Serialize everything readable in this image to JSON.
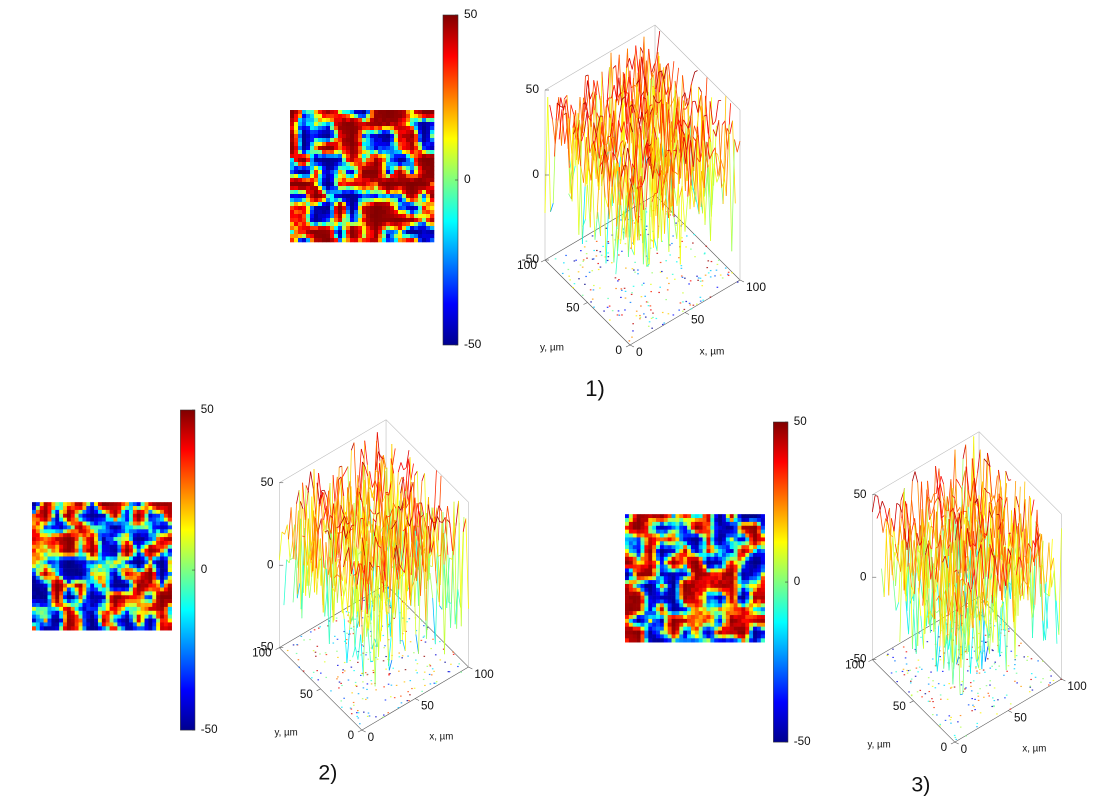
{
  "panels": [
    {
      "label": "1)",
      "colorbar_lim": [
        -50,
        50
      ],
      "colorbar_ticks": [
        50,
        0,
        -50
      ],
      "z_lim": [
        -50,
        50
      ],
      "z_ticks": [
        50,
        0,
        -50
      ],
      "x_lim": [
        0,
        100
      ],
      "x_ticks": [
        0,
        50,
        100
      ],
      "y_lim": [
        0,
        100
      ],
      "y_ticks": [
        0,
        50,
        100
      ],
      "x_label": "x, µm",
      "y_label": "y, µm"
    },
    {
      "label": "2)",
      "colorbar_lim": [
        -50,
        50
      ],
      "colorbar_ticks": [
        50,
        0,
        -50
      ],
      "z_lim": [
        -50,
        50
      ],
      "z_ticks": [
        50,
        0,
        -50
      ],
      "x_lim": [
        0,
        100
      ],
      "x_ticks": [
        0,
        50,
        100
      ],
      "y_lim": [
        0,
        100
      ],
      "y_ticks": [
        0,
        50,
        100
      ],
      "x_label": "x, µm",
      "y_label": "y, µm"
    },
    {
      "label": "3)",
      "colorbar_lim": [
        -50,
        50
      ],
      "colorbar_ticks": [
        50,
        0,
        -50
      ],
      "z_lim": [
        -50,
        50
      ],
      "z_ticks": [
        50,
        0,
        -50
      ],
      "x_lim": [
        0,
        100
      ],
      "x_ticks": [
        0,
        50,
        100
      ],
      "y_lim": [
        0,
        100
      ],
      "y_ticks": [
        0,
        50,
        100
      ],
      "x_label": "x, µm",
      "y_label": "y, µm"
    }
  ]
}
